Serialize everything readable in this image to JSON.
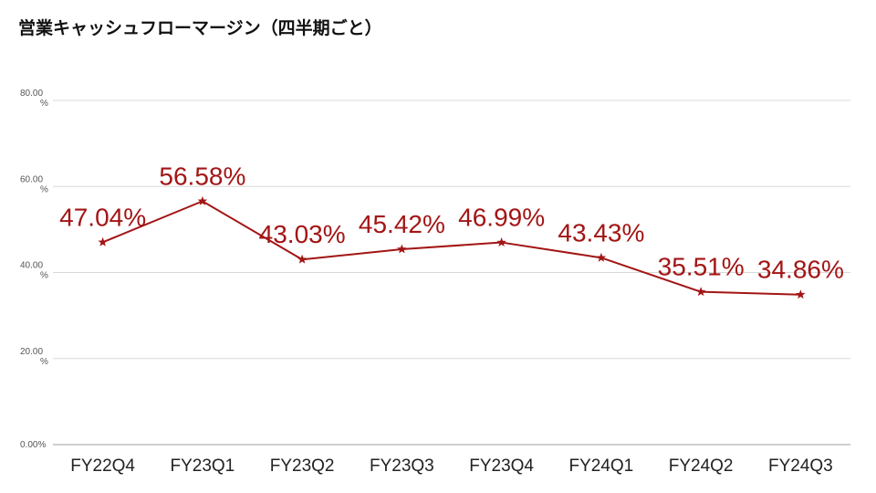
{
  "chart_data": {
    "type": "line",
    "title": "営業キャッシュフローマージン（四半期ごと）",
    "xlabel": "",
    "ylabel": "",
    "categories": [
      "FY22Q4",
      "FY23Q1",
      "FY23Q2",
      "FY23Q3",
      "FY23Q4",
      "FY24Q1",
      "FY24Q2",
      "FY24Q3"
    ],
    "series": [
      {
        "values": [
          47.04,
          56.58,
          43.03,
          45.42,
          46.99,
          43.43,
          35.51,
          34.86
        ],
        "labels": [
          "47.04%",
          "56.58%",
          "43.03%",
          "45.42%",
          "46.99%",
          "43.43%",
          "35.51%",
          "34.86%"
        ],
        "color": "#a31515",
        "marker": "star"
      }
    ],
    "ylim": [
      0,
      80
    ],
    "yticks": [
      {
        "value": 0,
        "label": "0.00%"
      },
      {
        "value": 20,
        "label": "20.00 %"
      },
      {
        "value": 40,
        "label": "40.00 %"
      },
      {
        "value": 60,
        "label": "60.00 %"
      },
      {
        "value": 80,
        "label": "80.00 %"
      }
    ],
    "grid": true,
    "legend": "none",
    "gridColor": "#d9d9d9"
  }
}
